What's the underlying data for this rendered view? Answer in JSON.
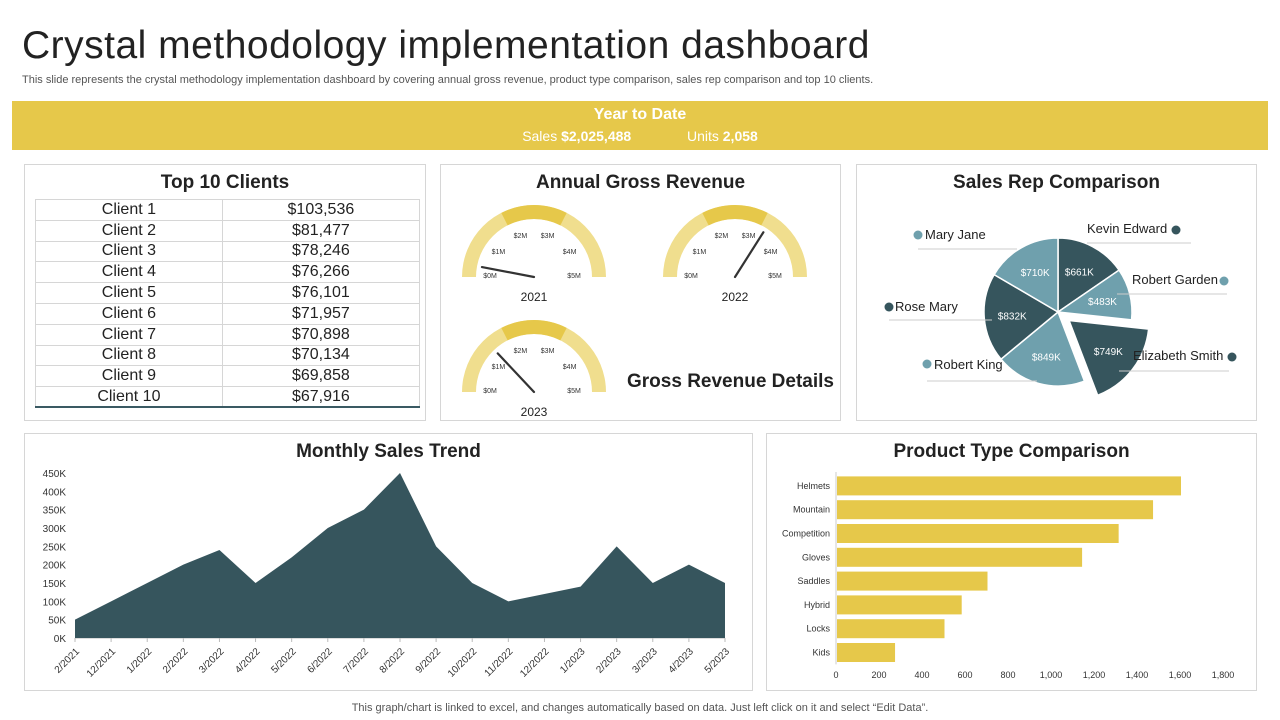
{
  "header": {
    "title": "Crystal methodology implementation dashboard",
    "subtitle": "This slide represents the crystal methodology implementation dashboard by covering annual gross revenue, product type comparison, sales rep comparison and top 10 clients."
  },
  "ytd": {
    "heading": "Year to Date",
    "sales_label": "Sales",
    "sales_value": "$2,025,488",
    "units_label": "Units",
    "units_value": "2,058"
  },
  "colors": {
    "accent": "#E6C84A",
    "gauge_light": "#F0DE8E",
    "dark": "#36555D",
    "teal": "#6FA0AD"
  },
  "footer": "This graph/chart is linked to excel,  and changes automatically based on data. Just left click on it and select “Edit Data”.",
  "chart_data": [
    {
      "type": "table",
      "title": "Top 10 Clients",
      "rows": [
        [
          "Client 1",
          "$103,536"
        ],
        [
          "Client 2",
          "$81,477"
        ],
        [
          "Client 3",
          "$78,246"
        ],
        [
          "Client 4",
          "$76,266"
        ],
        [
          "Client 5",
          "$76,101"
        ],
        [
          "Client 6",
          "$71,957"
        ],
        [
          "Client 7",
          "$70,898"
        ],
        [
          "Client 8",
          "$70,134"
        ],
        [
          "Client 9",
          "$69,858"
        ],
        [
          "Client 10",
          "$67,916"
        ]
      ]
    },
    {
      "type": "gauge",
      "title": "Annual Gross Revenue",
      "caption": "Gross Revenue Details",
      "tick_labels": [
        "$0M",
        "$1M",
        "$2M",
        "$3M",
        "$4M",
        "$5M"
      ],
      "range": [
        0,
        5
      ],
      "gauges": [
        {
          "label": "2021",
          "value": 0.3
        },
        {
          "label": "2022",
          "value": 3.4
        },
        {
          "label": "2023",
          "value": 1.3
        }
      ]
    },
    {
      "type": "pie",
      "title": "Sales Rep Comparison",
      "slices": [
        {
          "name": "Kevin Edward",
          "value": 661,
          "label": "$661K",
          "color": "#36555D",
          "explode": false
        },
        {
          "name": "Robert Garden",
          "value": 483,
          "label": "$483K",
          "color": "#6FA0AD",
          "explode": false
        },
        {
          "name": "Elizabeth Smith",
          "value": 749,
          "label": "$749K",
          "color": "#36555D",
          "explode": true
        },
        {
          "name": "Robert King",
          "value": 849,
          "label": "$849K",
          "color": "#6FA0AD",
          "explode": false
        },
        {
          "name": "Rose Mary",
          "value": 832,
          "label": "$832K",
          "color": "#36555D",
          "explode": false
        },
        {
          "name": "Mary Jane",
          "value": 710,
          "label": "$710K",
          "color": "#6FA0AD",
          "explode": false
        }
      ]
    },
    {
      "type": "area",
      "title": "Monthly Sales Trend",
      "categories": [
        "2/2021",
        "12/2021",
        "1/2022",
        "2/2022",
        "3/2022",
        "4/2022",
        "5/2022",
        "6/2022",
        "7/2022",
        "8/2022",
        "9/2022",
        "10/2022",
        "11/2022",
        "12/2022",
        "1/2023",
        "2/2023",
        "3/2023",
        "4/2023",
        "5/2023"
      ],
      "values": [
        50,
        100,
        150,
        200,
        240,
        150,
        220,
        300,
        350,
        450,
        250,
        150,
        100,
        120,
        140,
        250,
        150,
        200,
        150
      ],
      "unit": "K",
      "ylim": [
        0,
        450
      ],
      "yticks": [
        "0K",
        "50K",
        "100K",
        "150K",
        "200K",
        "250K",
        "300K",
        "350K",
        "400K",
        "450K"
      ]
    },
    {
      "type": "bar",
      "orientation": "horizontal",
      "title": "Product Type Comparison",
      "categories": [
        "Helmets",
        "Mountain",
        "Competition",
        "Gloves",
        "Saddles",
        "Hybrid",
        "Locks",
        "Kids"
      ],
      "values": [
        1600,
        1470,
        1310,
        1140,
        700,
        580,
        500,
        270
      ],
      "xlim": [
        0,
        1800
      ],
      "xticks": [
        "0",
        "200",
        "400",
        "600",
        "800",
        "1,000",
        "1,200",
        "1,400",
        "1,600",
        "1,800"
      ]
    }
  ]
}
